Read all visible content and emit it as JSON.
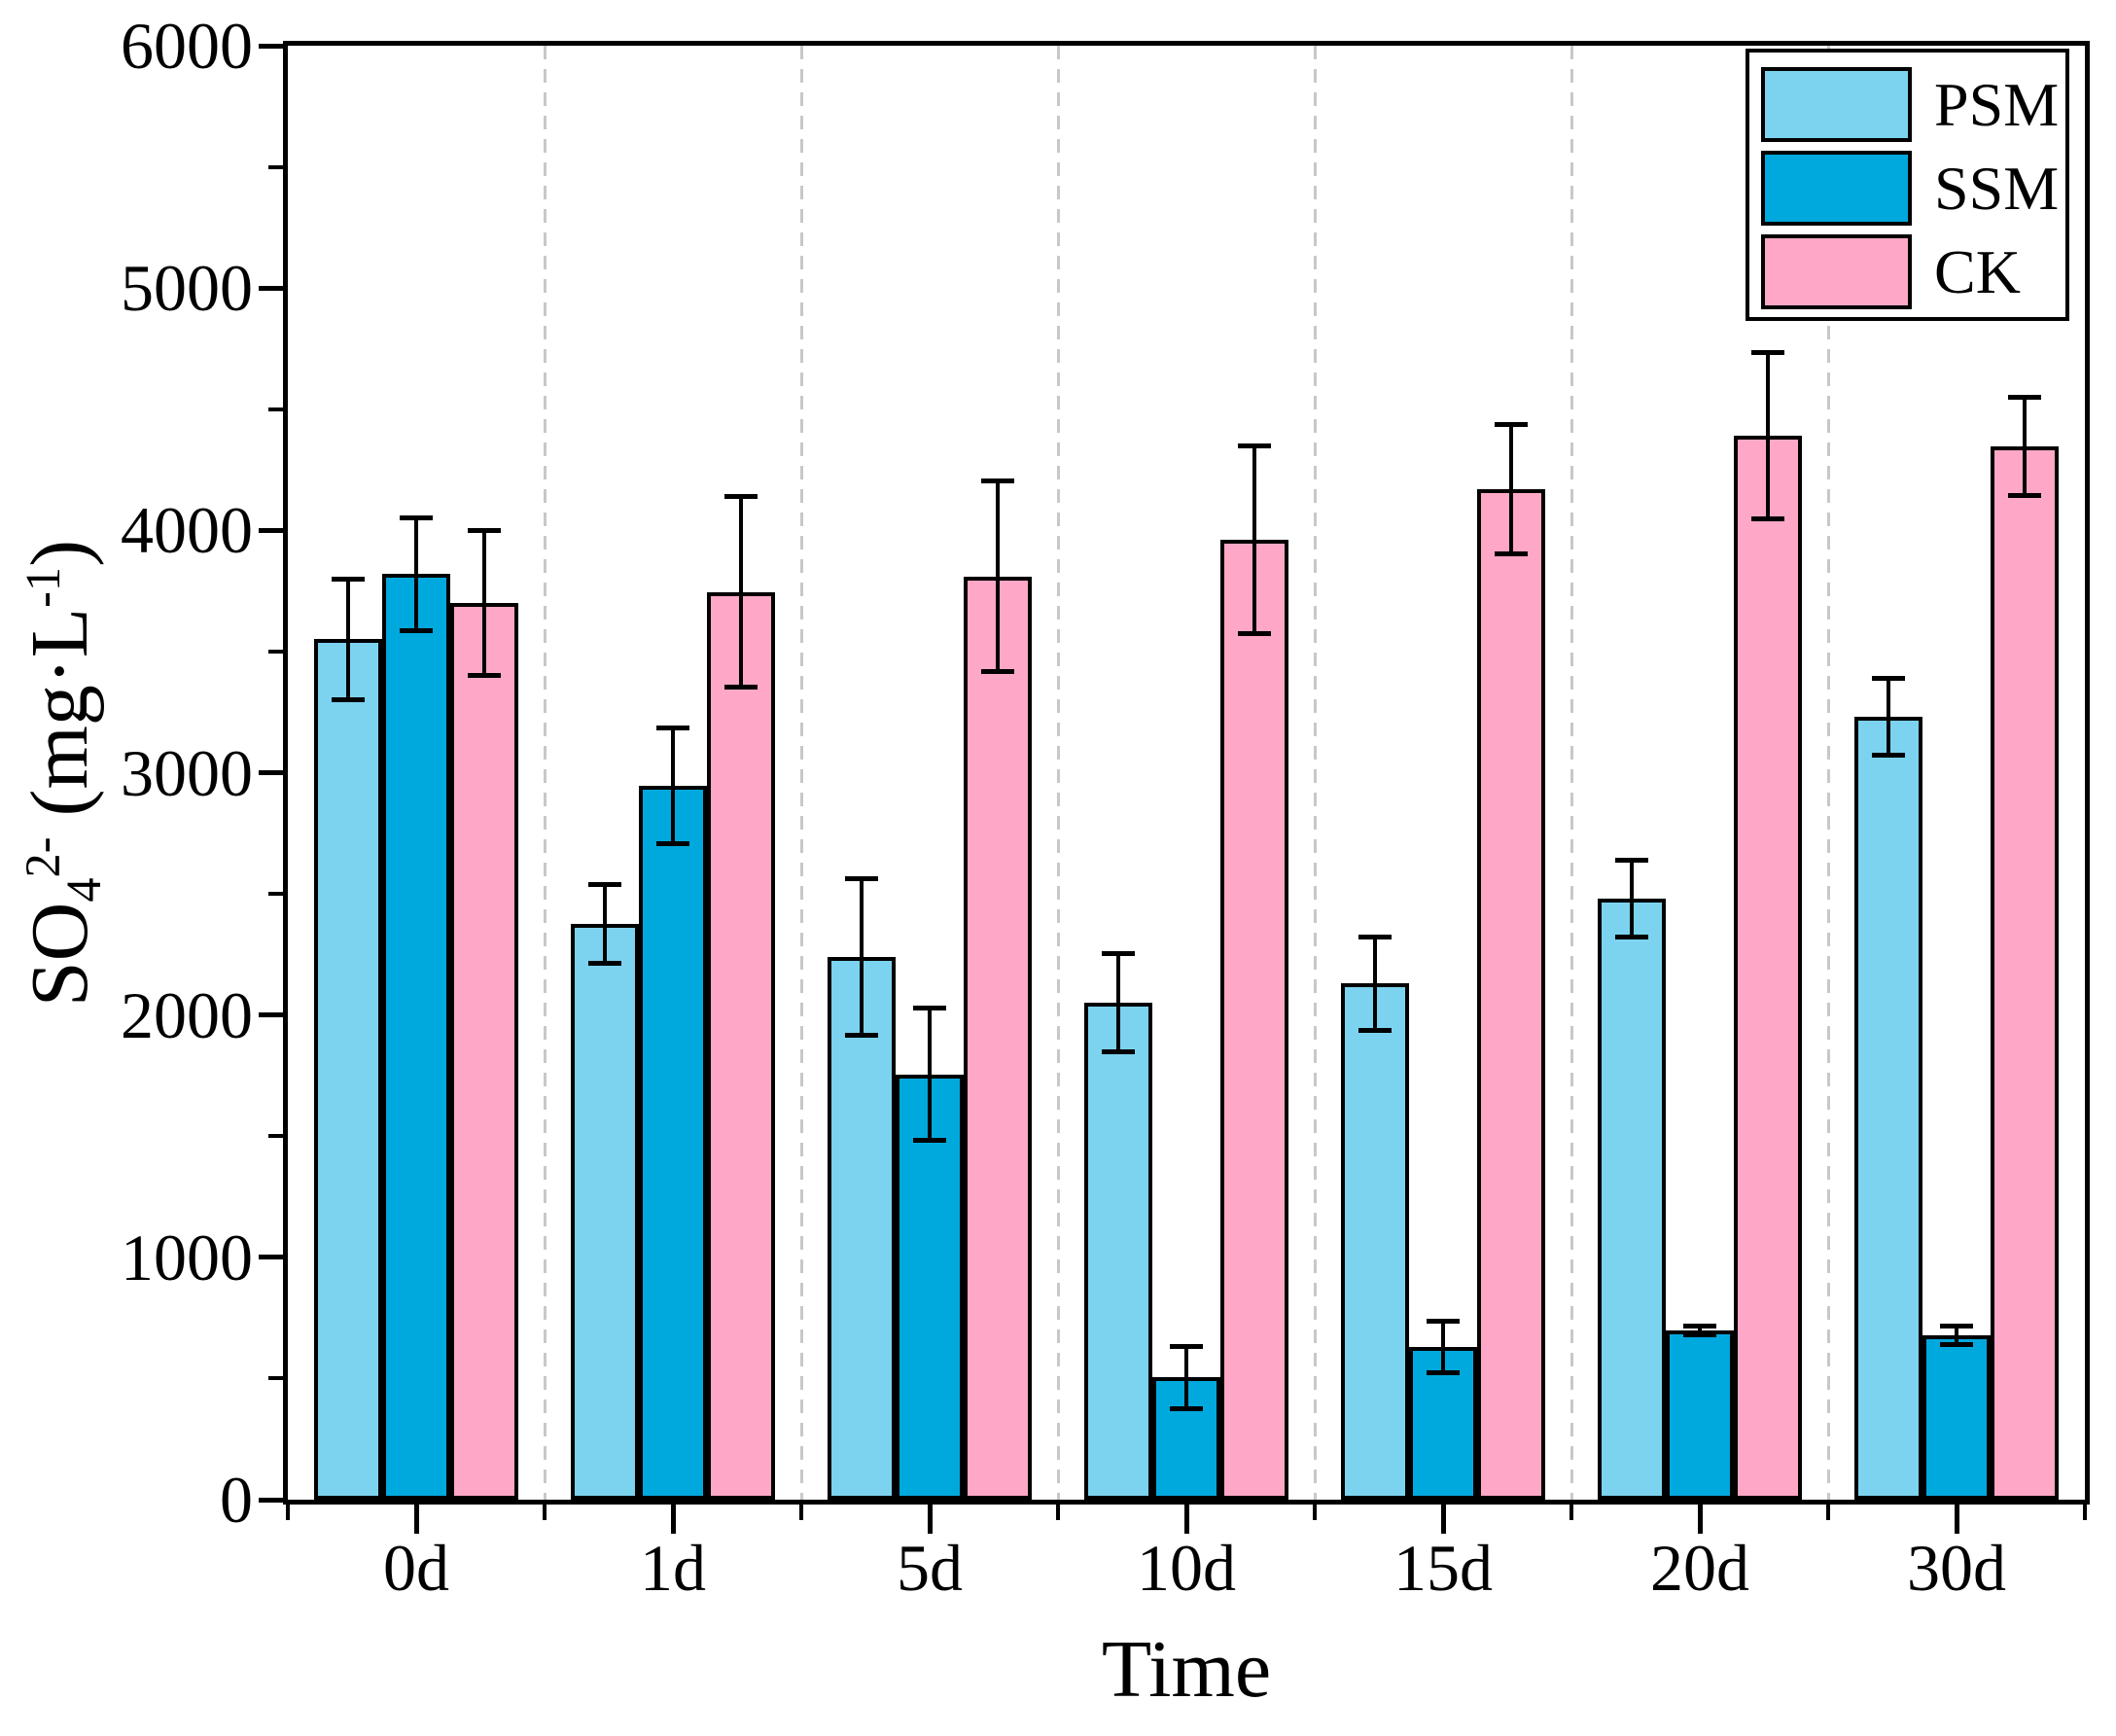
{
  "figure": {
    "background": "#ffffff",
    "frame_color": "#000000",
    "grid_color": "#c8c8c8"
  },
  "y_axis": {
    "title_parts": {
      "base": "SO",
      "subscript": "4",
      "superscript": "2-",
      "unit_prefix": " (mg·L",
      "unit_superscript": "-1",
      "unit_suffix": ")"
    },
    "tick_labels": [
      "0",
      "1000",
      "2000",
      "3000",
      "4000",
      "5000",
      "6000"
    ]
  },
  "x_axis": {
    "title": "Time",
    "tick_labels": [
      "0d",
      "1d",
      "5d",
      "10d",
      "15d",
      "20d",
      "30d"
    ]
  },
  "legend": {
    "items": [
      "PSM",
      "SSM",
      "CK"
    ]
  },
  "chart_data": {
    "type": "bar",
    "title": "",
    "xlabel": "Time",
    "ylabel": "SO4^2- (mg·L^-1)",
    "categories": [
      "0d",
      "1d",
      "5d",
      "10d",
      "15d",
      "20d",
      "30d"
    ],
    "series": [
      {
        "name": "PSM",
        "color": "#7CD3F0",
        "values": [
          3550,
          2375,
          2240,
          2050,
          2130,
          2480,
          3230
        ],
        "errors": [
          250,
          165,
          325,
          205,
          195,
          160,
          160
        ]
      },
      {
        "name": "SSM",
        "color": "#00A9DD",
        "values": [
          3820,
          2945,
          1755,
          505,
          630,
          700,
          680
        ],
        "errors": [
          235,
          240,
          275,
          130,
          110,
          20,
          40
        ]
      },
      {
        "name": "CK",
        "color": "#FFA7C7",
        "values": [
          3700,
          3745,
          3810,
          3960,
          4170,
          4390,
          4345
        ],
        "errors": [
          300,
          395,
          395,
          390,
          270,
          345,
          205
        ]
      }
    ],
    "ylim": [
      0,
      6000
    ],
    "y_major_ticks": [
      0,
      1000,
      2000,
      3000,
      4000,
      5000,
      6000
    ],
    "y_minor_step": 500,
    "grid": "vertical dashed lines between category groups",
    "legend_position": "top-right-inside",
    "error_bars": "both directions with caps"
  }
}
